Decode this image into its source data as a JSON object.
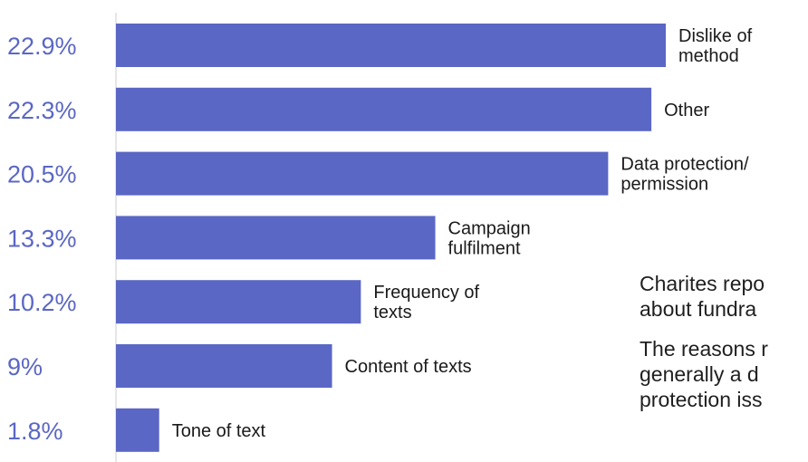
{
  "chart_data": {
    "type": "bar",
    "orientation": "horizontal",
    "bar_color": "#5b67c4",
    "value_label_color": "#5b67c4",
    "xlim": [
      0,
      25
    ],
    "grid": false,
    "categories": [
      [
        "Dislike of",
        "method"
      ],
      [
        "Other"
      ],
      [
        "Data protection/",
        "permission"
      ],
      [
        "Campaign",
        "fulfilment"
      ],
      [
        "Frequency of",
        "texts"
      ],
      [
        "Content of texts"
      ],
      [
        "Tone of text"
      ]
    ],
    "values": [
      22.9,
      22.3,
      20.5,
      13.3,
      10.2,
      9,
      1.8
    ],
    "value_labels": [
      "22.9%",
      "22.3%",
      "20.5%",
      "13.3%",
      "10.2%",
      "9%",
      "1.8%"
    ]
  },
  "side_text": {
    "paragraph1": [
      "Charites repo",
      "about fundra"
    ],
    "paragraph2": [
      "The reasons r",
      "generally a d",
      "protection iss"
    ]
  }
}
